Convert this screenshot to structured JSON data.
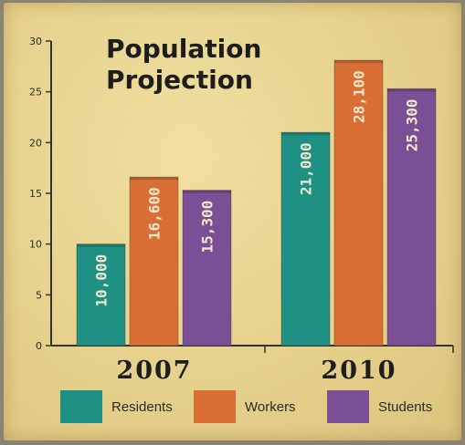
{
  "chart_data": {
    "type": "bar",
    "title": "Population Projection",
    "categories": [
      "2007",
      "2010"
    ],
    "series": [
      {
        "name": "Residents",
        "values": [
          10,
          21
        ],
        "labels": [
          "10,000",
          "21,000"
        ],
        "color": "#1f9184"
      },
      {
        "name": "Workers",
        "values": [
          16.6,
          28.1
        ],
        "labels": [
          "16,600",
          "28,100"
        ],
        "color": "#d96f35"
      },
      {
        "name": "Students",
        "values": [
          15.3,
          25.3
        ],
        "labels": [
          "15,300",
          "25,300"
        ],
        "color": "#7a4f96"
      }
    ],
    "yticks": [
      0,
      5,
      10,
      15,
      20,
      25,
      30
    ],
    "ylim": [
      0,
      30
    ],
    "xlabel": "",
    "ylabel": "",
    "grid": false,
    "legend_position": "bottom"
  },
  "colors": {
    "background": "#e8d490",
    "text": "#1d1d1d"
  }
}
